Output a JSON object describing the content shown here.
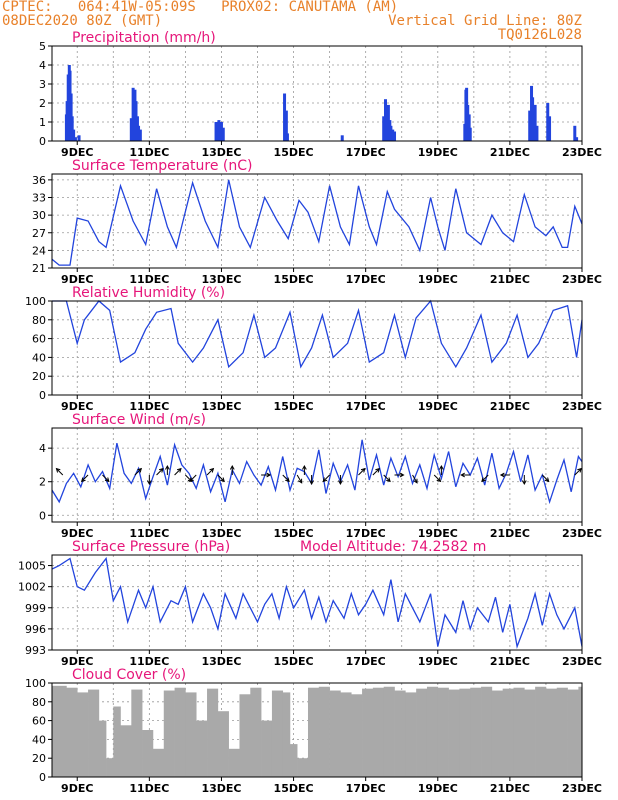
{
  "header": {
    "line1": "CPTEC:   064:41W-05:09S   PROX02: CANUTAMA (AM)",
    "line2_left": "08DEC2020 80Z (GMT)",
    "line2_right": "Vertical Grid Line: 80Z",
    "line3_right": "TQ0126L028"
  },
  "colors": {
    "header": "#e8812a",
    "title": "#e6167a",
    "line": "#2244dd",
    "bar": "#2244dd",
    "cloud": "#a9a9a9",
    "arrow": "#000000"
  },
  "chart_data": [
    {
      "type": "bar",
      "title": "Precipitation (mm/h)",
      "xlabel": "",
      "ylabel": "",
      "xticks": [
        "9DEC",
        "11DEC",
        "13DEC",
        "15DEC",
        "17DEC",
        "19DEC",
        "21DEC",
        "23DEC"
      ],
      "yticks": [
        "0",
        "1",
        "2",
        "3",
        "4",
        "5"
      ],
      "ylim": [
        0,
        5
      ],
      "xlim": [
        8.3,
        23
      ],
      "grid": true,
      "x": [
        8.7,
        8.72,
        8.75,
        8.78,
        8.8,
        8.83,
        8.86,
        8.9,
        8.95,
        9.05,
        10.5,
        10.55,
        10.6,
        10.63,
        10.67,
        10.7,
        10.75,
        12.85,
        12.9,
        12.93,
        12.97,
        13.0,
        13.05,
        14.75,
        14.8,
        14.83,
        16.35,
        17.5,
        17.55,
        17.6,
        17.63,
        17.67,
        17.7,
        17.75,
        17.8,
        19.75,
        19.78,
        19.8,
        19.83,
        19.87,
        19.9,
        21.55,
        21.6,
        21.63,
        21.67,
        21.7,
        21.75,
        22.05,
        22.1,
        22.8,
        22.85
      ],
      "values": [
        1.4,
        2.1,
        3.5,
        4.0,
        3.7,
        2.5,
        1.3,
        0.6,
        0.2,
        0.3,
        1.2,
        2.8,
        2.7,
        2.1,
        1.3,
        0.8,
        0.6,
        1.0,
        0.9,
        1.1,
        0.8,
        1.0,
        0.7,
        2.5,
        1.6,
        0.4,
        0.3,
        1.3,
        2.2,
        1.6,
        1.9,
        1.1,
        0.8,
        0.6,
        0.5,
        0.9,
        2.7,
        2.8,
        1.9,
        1.4,
        0.7,
        1.6,
        2.9,
        2.3,
        1.4,
        1.9,
        0.8,
        2.0,
        1.3,
        0.8,
        0.2
      ]
    },
    {
      "type": "line",
      "title": "Surface Temperature (nC)",
      "xlabel": "",
      "ylabel": "",
      "xticks": [
        "9DEC",
        "11DEC",
        "13DEC",
        "15DEC",
        "17DEC",
        "19DEC",
        "21DEC",
        "23DEC"
      ],
      "yticks": [
        "21",
        "24",
        "27",
        "30",
        "33",
        "36"
      ],
      "ylim": [
        21,
        37
      ],
      "xlim": [
        8.3,
        23
      ],
      "grid": true,
      "x": [
        8.3,
        8.5,
        8.8,
        9.0,
        9.3,
        9.6,
        9.8,
        10.2,
        10.55,
        10.9,
        11.2,
        11.5,
        11.75,
        12.2,
        12.55,
        12.9,
        13.2,
        13.5,
        13.8,
        14.2,
        14.55,
        14.85,
        15.15,
        15.4,
        15.7,
        16.0,
        16.3,
        16.55,
        16.8,
        17.1,
        17.3,
        17.6,
        17.8,
        18.2,
        18.5,
        18.8,
        19.0,
        19.2,
        19.5,
        19.8,
        20.2,
        20.5,
        20.8,
        21.1,
        21.4,
        21.7,
        22.0,
        22.2,
        22.45,
        22.6,
        22.8,
        23.0
      ],
      "values": [
        22.5,
        21.5,
        21.5,
        29.5,
        29.0,
        25.5,
        24.5,
        35.0,
        29.0,
        25.0,
        34.5,
        28.0,
        24.5,
        35.5,
        29.0,
        24.5,
        36.0,
        28.0,
        24.5,
        33.0,
        29.0,
        26.0,
        32.5,
        30.5,
        25.5,
        35.0,
        28.0,
        25.0,
        35.0,
        28.0,
        25.0,
        34.0,
        31.0,
        28.0,
        24.0,
        33.0,
        28.0,
        24.0,
        34.5,
        27.0,
        25.0,
        30.0,
        27.0,
        25.5,
        33.5,
        28.0,
        26.5,
        28.0,
        24.5,
        24.5,
        31.5,
        28.5
      ]
    },
    {
      "type": "line",
      "title": "Relative Humidity (%)",
      "xlabel": "",
      "ylabel": "",
      "xticks": [
        "9DEC",
        "11DEC",
        "13DEC",
        "15DEC",
        "17DEC",
        "19DEC",
        "21DEC",
        "23DEC"
      ],
      "yticks": [
        "0",
        "20",
        "40",
        "60",
        "80",
        "100"
      ],
      "ylim": [
        0,
        100
      ],
      "xlim": [
        8.3,
        23
      ],
      "grid": true,
      "x": [
        8.3,
        8.7,
        9.0,
        9.2,
        9.6,
        9.9,
        10.2,
        10.6,
        10.9,
        11.2,
        11.6,
        11.8,
        12.2,
        12.5,
        12.9,
        13.2,
        13.6,
        13.9,
        14.2,
        14.5,
        14.9,
        15.2,
        15.5,
        15.8,
        16.1,
        16.5,
        16.8,
        17.1,
        17.5,
        17.8,
        18.1,
        18.4,
        18.8,
        19.1,
        19.5,
        19.8,
        20.2,
        20.5,
        20.9,
        21.2,
        21.5,
        21.8,
        22.2,
        22.6,
        22.85,
        23.0
      ],
      "values": [
        100,
        100,
        55,
        80,
        100,
        90,
        35,
        45,
        70,
        88,
        92,
        55,
        35,
        50,
        80,
        30,
        45,
        85,
        40,
        50,
        88,
        30,
        50,
        85,
        40,
        55,
        90,
        35,
        45,
        85,
        40,
        82,
        100,
        55,
        30,
        50,
        85,
        35,
        55,
        85,
        40,
        55,
        90,
        95,
        40,
        80
      ]
    },
    {
      "type": "line",
      "title": "Surface Wind (m/s)",
      "xlabel": "",
      "ylabel": "",
      "xticks": [
        "9DEC",
        "11DEC",
        "13DEC",
        "15DEC",
        "17DEC",
        "19DEC",
        "21DEC",
        "23DEC"
      ],
      "yticks": [
        "0",
        "2",
        "4"
      ],
      "ylim": [
        -0.4,
        5.2
      ],
      "xlim": [
        8.3,
        23
      ],
      "grid": true,
      "x": [
        8.3,
        8.5,
        8.7,
        8.9,
        9.1,
        9.3,
        9.5,
        9.7,
        9.9,
        10.1,
        10.3,
        10.5,
        10.7,
        10.9,
        11.1,
        11.3,
        11.5,
        11.7,
        11.9,
        12.1,
        12.3,
        12.5,
        12.7,
        12.9,
        13.1,
        13.3,
        13.5,
        13.7,
        13.9,
        14.1,
        14.3,
        14.5,
        14.7,
        14.9,
        15.1,
        15.3,
        15.5,
        15.7,
        15.9,
        16.1,
        16.3,
        16.5,
        16.7,
        16.9,
        17.1,
        17.3,
        17.5,
        17.7,
        17.9,
        18.1,
        18.3,
        18.5,
        18.7,
        18.9,
        19.1,
        19.3,
        19.5,
        19.7,
        19.9,
        20.1,
        20.3,
        20.5,
        20.7,
        20.9,
        21.1,
        21.3,
        21.5,
        21.7,
        21.9,
        22.1,
        22.3,
        22.5,
        22.7,
        22.9,
        23.0
      ],
      "values": [
        1.5,
        0.8,
        1.9,
        2.5,
        1.7,
        3.0,
        2.0,
        2.6,
        1.6,
        4.3,
        2.5,
        1.9,
        2.8,
        1.0,
        2.3,
        3.5,
        1.8,
        4.2,
        3.0,
        2.5,
        1.6,
        3.0,
        1.4,
        2.5,
        0.8,
        2.7,
        1.9,
        3.2,
        2.4,
        1.8,
        2.9,
        1.5,
        3.5,
        1.5,
        2.8,
        2.6,
        1.9,
        3.9,
        1.3,
        3.1,
        2.0,
        3.0,
        1.5,
        4.5,
        2.1,
        3.6,
        1.8,
        3.4,
        2.3,
        3.5,
        1.9,
        3.0,
        1.6,
        3.6,
        2.2,
        3.8,
        1.7,
        3.1,
        2.4,
        3.4,
        1.8,
        3.7,
        1.6,
        2.5,
        3.8,
        2.0,
        3.6,
        1.5,
        2.4,
        0.8,
        2.1,
        3.3,
        1.4,
        3.5,
        3.2
      ],
      "arrows_deg": [
        135,
        225,
        315,
        45,
        270,
        45,
        90,
        45,
        315,
        225,
        45,
        315,
        90,
        0,
        315,
        300,
        90,
        270,
        225,
        270,
        45,
        45,
        315,
        0,
        300,
        315,
        90,
        180,
        225,
        180,
        270,
        315,
        45
      ],
      "arrows_x": [
        8.6,
        9.3,
        9.7,
        10.6,
        11.0,
        11.2,
        11.5,
        11.7,
        12.0,
        12.3,
        12.6,
        12.9,
        13.3,
        14.1,
        14.7,
        15.1,
        15.3,
        15.5,
        16.0,
        16.3,
        16.8,
        17.2,
        17.5,
        17.8,
        18.3,
        18.9,
        19.1,
        19.9,
        20.4,
        21.0,
        21.4,
        21.9,
        22.8
      ]
    },
    {
      "type": "line",
      "title": "Surface Pressure (hPa)",
      "subtitle": "Model Altitude: 74.2582 m",
      "xlabel": "",
      "ylabel": "",
      "xticks": [
        "9DEC",
        "11DEC",
        "13DEC",
        "15DEC",
        "17DEC",
        "19DEC",
        "21DEC",
        "23DEC"
      ],
      "yticks": [
        "993",
        "996",
        "999",
        "1002",
        "1005"
      ],
      "ylim": [
        993,
        1006.5
      ],
      "xlim": [
        8.3,
        23
      ],
      "grid": true,
      "x": [
        8.3,
        8.5,
        8.8,
        9.0,
        9.2,
        9.5,
        9.8,
        10.0,
        10.2,
        10.4,
        10.7,
        10.9,
        11.1,
        11.3,
        11.6,
        11.8,
        12.0,
        12.2,
        12.5,
        12.7,
        12.9,
        13.1,
        13.4,
        13.6,
        13.8,
        14.0,
        14.2,
        14.4,
        14.6,
        14.8,
        15.0,
        15.3,
        15.5,
        15.7,
        15.9,
        16.1,
        16.4,
        16.6,
        16.8,
        17.0,
        17.2,
        17.5,
        17.7,
        17.9,
        18.1,
        18.3,
        18.5,
        18.8,
        19.0,
        19.2,
        19.5,
        19.7,
        19.9,
        20.1,
        20.4,
        20.6,
        20.8,
        21.0,
        21.2,
        21.5,
        21.7,
        21.9,
        22.1,
        22.3,
        22.5,
        22.8,
        23.0
      ],
      "values": [
        1004.5,
        1005.0,
        1006.0,
        1002.0,
        1001.5,
        1004.0,
        1006.0,
        1000.0,
        1002.0,
        997.0,
        1001.5,
        999.0,
        1002.0,
        997.0,
        1000.0,
        999.5,
        1002.0,
        997.0,
        1001.0,
        999.0,
        996.0,
        1001.0,
        997.5,
        1001.0,
        999.0,
        997.0,
        999.5,
        1001.0,
        997.5,
        1002.0,
        999.0,
        1001.5,
        997.5,
        1000.5,
        997.0,
        1000.0,
        997.5,
        1001.0,
        998.0,
        999.5,
        1001.5,
        998.0,
        1003.0,
        997.0,
        1001.0,
        999.0,
        997.0,
        1001.0,
        993.5,
        998.0,
        995.5,
        1000.0,
        996.0,
        999.0,
        997.0,
        1000.5,
        995.5,
        999.5,
        993.5,
        997.5,
        1001.0,
        996.5,
        1001.0,
        998.0,
        996.0,
        999.0,
        993.5
      ]
    },
    {
      "type": "area",
      "title": "Cloud Cover (%)",
      "xlabel": "",
      "ylabel": "",
      "xticks": [
        "9DEC",
        "11DEC",
        "13DEC",
        "15DEC",
        "17DEC",
        "19DEC",
        "21DEC",
        "23DEC"
      ],
      "yticks": [
        "0",
        "20",
        "40",
        "60",
        "80",
        "100"
      ],
      "ylim": [
        0,
        100
      ],
      "xlim": [
        8.3,
        23
      ],
      "grid": true,
      "x": [
        8.3,
        8.7,
        9.0,
        9.3,
        9.6,
        9.8,
        10.0,
        10.2,
        10.5,
        10.8,
        11.1,
        11.4,
        11.7,
        12.0,
        12.3,
        12.6,
        12.9,
        13.2,
        13.5,
        13.8,
        14.1,
        14.4,
        14.7,
        14.9,
        15.1,
        15.4,
        15.7,
        16.0,
        16.3,
        16.6,
        16.9,
        17.2,
        17.5,
        17.8,
        18.1,
        18.4,
        18.7,
        19.0,
        19.3,
        19.6,
        19.9,
        20.2,
        20.5,
        20.8,
        21.1,
        21.4,
        21.7,
        22.0,
        22.3,
        22.6,
        22.9,
        23.0
      ],
      "values": [
        97,
        95,
        90,
        93,
        60,
        20,
        75,
        55,
        93,
        50,
        30,
        92,
        95,
        90,
        60,
        94,
        70,
        30,
        88,
        95,
        60,
        92,
        90,
        35,
        20,
        95,
        96,
        92,
        90,
        88,
        94,
        95,
        96,
        92,
        90,
        94,
        96,
        95,
        93,
        94,
        95,
        96,
        92,
        94,
        95,
        93,
        96,
        94,
        95,
        93,
        96,
        95
      ]
    }
  ]
}
